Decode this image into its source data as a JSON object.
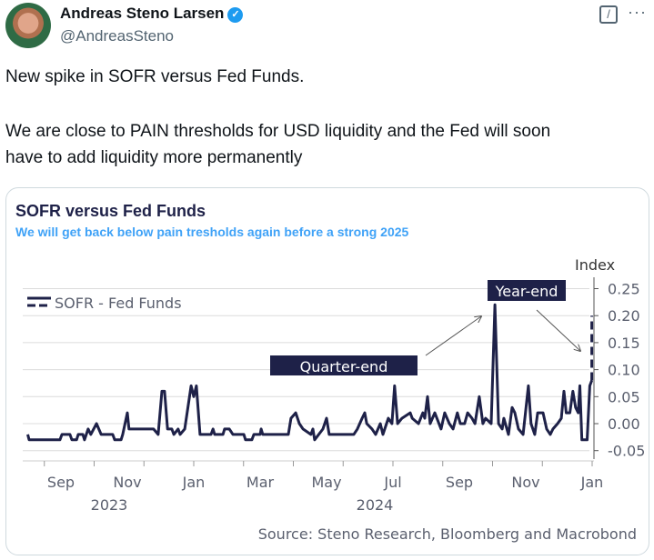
{
  "author": {
    "name": "Andreas Steno Larsen",
    "handle": "@AndreasSteno",
    "verified_icon": "verified-badge-icon"
  },
  "header_icons": [
    "grok-icon",
    "more-icon"
  ],
  "tweet": {
    "line1": "New spike in SOFR versus Fed Funds.",
    "line2": "We are close to PAIN thresholds for USD liquidity and the Fed will soon",
    "line3": "have to add liquidity more permanently"
  },
  "colors": {
    "line": "#1e2148",
    "subtitle": "#3fa2f7",
    "grid": "#d9d9d9"
  },
  "chart_data": {
    "type": "line",
    "title": "SOFR versus Fed Funds",
    "subtitle": "We will get back below pain tresholds again before a strong 2025",
    "ylabel": "Index",
    "ylim": [
      -0.05,
      0.25
    ],
    "yticks": [
      "0.25",
      "0.20",
      "0.15",
      "0.10",
      "0.05",
      "0.00",
      "-0.05"
    ],
    "ytick_values": [
      0.25,
      0.2,
      0.15,
      0.1,
      0.05,
      0,
      -0.05
    ],
    "x_unit": "months since Aug 1 2023",
    "xtick_labels": [
      {
        "m": 1,
        "label": "Sep"
      },
      {
        "m": 3,
        "label": "Nov"
      },
      {
        "m": 5,
        "label": "Jan"
      },
      {
        "m": 7,
        "label": "Mar"
      },
      {
        "m": 9,
        "label": "May"
      },
      {
        "m": 11,
        "label": "Jul"
      },
      {
        "m": 13,
        "label": "Sep"
      },
      {
        "m": 15,
        "label": "Nov"
      },
      {
        "m": 17,
        "label": "Jan"
      }
    ],
    "year_labels": [
      {
        "m": 3,
        "label": "2023"
      },
      {
        "m": 11,
        "label": "2024"
      }
    ],
    "legend": {
      "label": "SOFR - Fed Funds",
      "placement": "top-left"
    },
    "annotations": {
      "quarter_end": "Quarter-end",
      "year_end": "Year-end"
    },
    "source": "Source: Steno Research, Bloomberg and Macrobond",
    "series": [
      {
        "name": "SOFR - Fed Funds",
        "x": [
          0,
          0.04,
          0.97,
          1.03,
          1.27,
          1.33,
          1.47,
          1.52,
          1.66,
          1.71,
          1.82,
          1.9,
          2.07,
          2.21,
          2.56,
          2.62,
          2.81,
          2.86,
          3.0,
          3.05,
          3.79,
          3.93,
          4.04,
          4.12,
          4.21,
          4.34,
          4.4,
          4.53,
          4.59,
          4.73,
          4.92,
          5.0,
          5.08,
          5.19,
          5.52,
          5.58,
          5.63,
          5.88,
          5.93,
          6.07,
          6.18,
          6.51,
          6.56,
          6.75,
          6.81,
          7.0,
          7.03,
          7.08,
          7.85,
          7.93,
          8.07,
          8.18,
          8.29,
          8.53,
          8.59,
          8.64,
          8.89,
          9.0,
          9.08,
          9.82,
          9.93,
          10.07,
          10.15,
          10.21,
          10.37,
          10.48,
          10.62,
          10.7,
          10.86,
          10.97,
          11.05,
          11.14,
          11.27,
          11.52,
          11.58,
          11.77,
          11.9,
          11.96,
          12.04,
          12.12,
          12.26,
          12.45,
          12.56,
          12.7,
          12.81,
          12.94,
          13.03,
          13.16,
          13.25,
          13.38,
          13.47,
          13.6,
          13.71,
          13.79,
          13.96,
          14.07,
          14.18,
          14.29,
          14.34,
          14.48,
          14.59,
          14.67,
          14.78,
          14.92,
          15.08,
          15.16,
          15.27,
          15.36,
          15.52,
          15.63,
          15.74,
          15.82,
          15.96,
          16.07,
          16.15,
          16.22,
          16.33,
          16.42,
          16.5,
          16.58,
          16.63,
          16.69,
          16.85,
          16.93,
          16.99
        ],
        "values": [
          -0.02,
          -0.03,
          -0.03,
          -0.02,
          -0.02,
          -0.03,
          -0.03,
          -0.02,
          -0.02,
          -0.03,
          -0.01,
          -0.02,
          0.0,
          -0.02,
          -0.02,
          -0.03,
          -0.03,
          -0.02,
          0.02,
          -0.01,
          -0.01,
          -0.02,
          0.06,
          0.06,
          -0.01,
          -0.01,
          -0.02,
          -0.01,
          -0.02,
          -0.01,
          0.07,
          0.05,
          0.07,
          -0.02,
          -0.02,
          -0.01,
          -0.02,
          -0.02,
          -0.01,
          -0.01,
          -0.02,
          -0.02,
          -0.03,
          -0.03,
          -0.02,
          -0.02,
          -0.01,
          -0.02,
          -0.02,
          0.01,
          0.02,
          0.0,
          -0.01,
          -0.02,
          -0.01,
          -0.03,
          -0.01,
          0.01,
          -0.02,
          -0.02,
          -0.01,
          0.01,
          0.02,
          0.0,
          -0.01,
          -0.02,
          0.0,
          -0.02,
          0.01,
          0.0,
          0.07,
          0.0,
          0.01,
          0.02,
          0.01,
          0.0,
          0.02,
          0.01,
          0.05,
          0.0,
          0.02,
          -0.01,
          0.02,
          0.0,
          -0.01,
          0.02,
          0.0,
          0.0,
          0.02,
          0.01,
          0.0,
          0.05,
          0.0,
          0.01,
          0.0,
          0.22,
          0.0,
          -0.01,
          0.01,
          -0.02,
          0.03,
          0.02,
          -0.01,
          -0.02,
          0.07,
          0.0,
          -0.02,
          0.02,
          0.02,
          -0.01,
          -0.02,
          -0.01,
          0.0,
          0.01,
          0.06,
          0.02,
          0.02,
          0.06,
          0.03,
          0.02,
          0.07,
          -0.03,
          -0.03,
          0.07,
          0.08
        ]
      },
      {
        "name": "SOFR - Fed Funds (latest spike, dashed)",
        "x": [
          16.99,
          16.99
        ],
        "values": [
          0.08,
          0.2
        ]
      }
    ]
  }
}
